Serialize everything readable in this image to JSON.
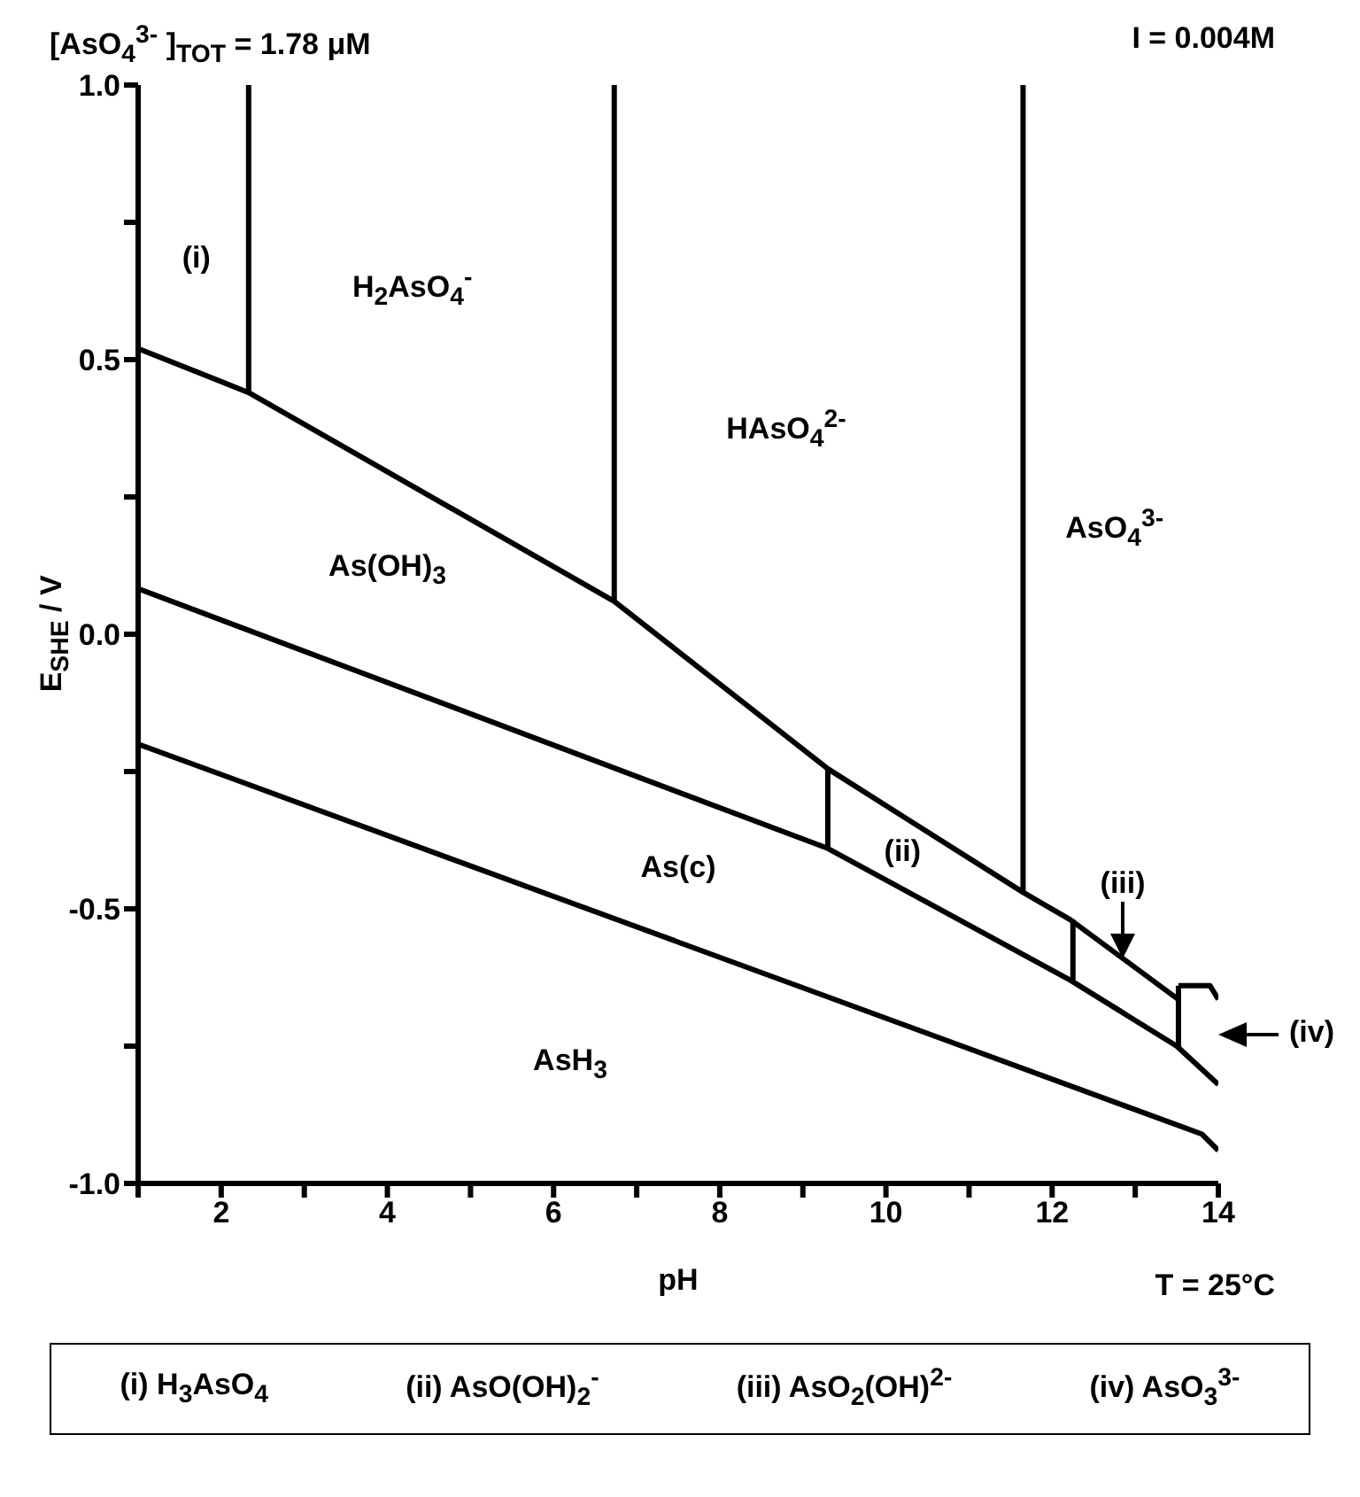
{
  "chart_data": {
    "type": "line",
    "title": "[AsO$_{4}$$^{3-}$ ]$_{TOT}$ =  1.78 μM",
    "subtitle": "I = 0.004M",
    "xlabel": "pH",
    "ylabel": "E$_{SHE}$ / V",
    "xlim": [
      1,
      14
    ],
    "xticks": [
      {
        "value": 1,
        "label": null
      },
      2,
      {
        "value": 3,
        "label": null
      },
      4,
      {
        "value": 5,
        "label": null
      },
      6,
      {
        "value": 7,
        "label": null
      },
      8,
      {
        "value": 9,
        "label": null
      },
      10,
      {
        "value": 11,
        "label": null
      },
      12,
      {
        "value": 13,
        "label": null
      },
      14
    ],
    "ylim": [
      -1,
      1
    ],
    "yticks": [
      {
        "value": -1,
        "label": "-1.0"
      },
      {
        "value": -0.75,
        "label": null
      },
      {
        "value": -0.5,
        "label": "-0.5"
      },
      {
        "value": -0.25,
        "label": null
      },
      {
        "value": 0,
        "label": "0.0"
      },
      {
        "value": 0.25,
        "label": null
      },
      {
        "value": 0.5,
        "label": "0.5"
      },
      {
        "value": 0.75,
        "label": null
      },
      {
        "value": 1,
        "label": "1.0"
      }
    ],
    "marker": "none",
    "line_style": "solid",
    "series": [
      {
        "type": "line",
        "color": "#000000",
        "x": [
          1,
          2.33,
          6.73,
          9.3,
          11.65,
          12.22,
          13.52
        ],
        "values": [
          0.52,
          0.44,
          0.06,
          -0.245,
          -0.47,
          -0.52,
          -0.665
        ]
      },
      {
        "type": "line",
        "color": "#000000",
        "x": [
          13.52,
          13.9,
          14
        ],
        "values": [
          -0.64,
          -0.64,
          -0.665
        ]
      },
      {
        "type": "line",
        "color": "#000000",
        "x": [
          1,
          9.3,
          12.22,
          13.5,
          14
        ],
        "values": [
          0.083,
          -0.39,
          -0.63,
          -0.75,
          -0.82
        ]
      },
      {
        "type": "line",
        "color": "#000000",
        "x": [
          1,
          13.8,
          14
        ],
        "values": [
          -0.2,
          -0.91,
          -0.94
        ]
      },
      {
        "type": "line",
        "color": "#000000",
        "x": [
          2.33,
          2.33
        ],
        "values": [
          0.44,
          1
        ]
      },
      {
        "type": "line",
        "color": "#000000",
        "x": [
          6.73,
          6.73
        ],
        "values": [
          0.06,
          1
        ]
      },
      {
        "type": "line",
        "color": "#000000",
        "x": [
          11.65,
          11.65
        ],
        "values": [
          -0.47,
          1
        ]
      },
      {
        "type": "line",
        "color": "#000000",
        "x": [
          9.3,
          9.3
        ],
        "values": [
          -0.245,
          -0.39
        ]
      },
      {
        "type": "line",
        "color": "#000000",
        "x": [
          12.25,
          12.25
        ],
        "values": [
          -0.52,
          -0.63
        ]
      },
      {
        "type": "line",
        "color": "#000000",
        "x": [
          13.52,
          13.52
        ],
        "values": [
          -0.64,
          -0.75
        ]
      }
    ],
    "annotations": [
      "(i)",
      "H$_{2}$AsO$_{4}$$^{-}$",
      "HAsO$_{4}$$^{2-}$",
      "AsO$_{4}$$^{3-}$",
      "As(OH)$_{3}$",
      "As(c)",
      "AsH$_{3}$",
      "(ii)",
      {
        "text": "(iii)",
        "x": 12.85,
        "y": -0.59
      },
      "(iv)",
      "T = 25°C",
      "(i) H$_{3}$AsO$_{4}$",
      "(ii) AsO(OH)$_{2}$$^{-}$",
      "(iii) AsO$_{2}$(OH)$^{2-}$",
      "(iv) AsO$_{3}$$^{3-}$"
    ]
  }
}
